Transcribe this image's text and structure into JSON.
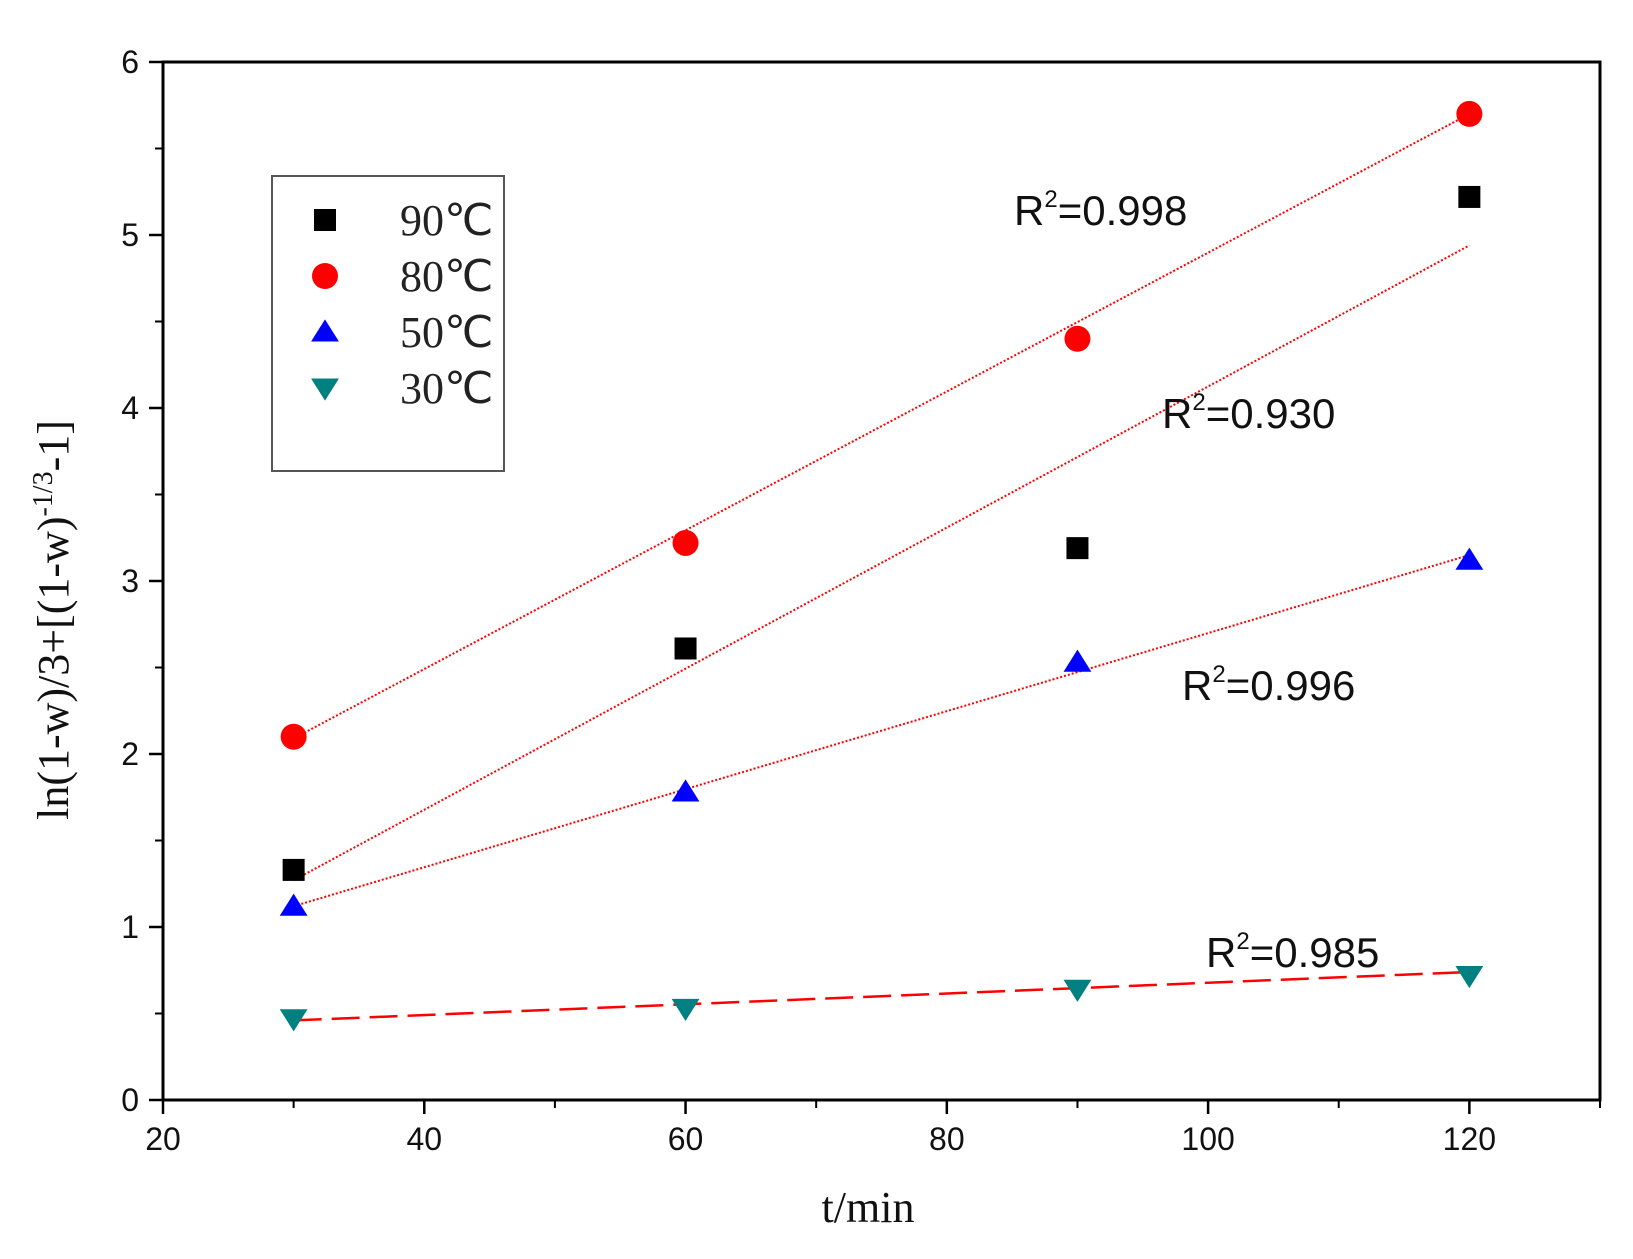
{
  "chart_data": {
    "type": "scatter",
    "title": "",
    "xlabel": "t/min",
    "ylabel": "ln(1-w)/3+[(1-w)^-1/3-1]",
    "ylabel_parts": {
      "main": "ln(1-w)/3+[(1-w)",
      "exp": "-1/3",
      "tail": "-1]"
    },
    "xlim": [
      20,
      130
    ],
    "ylim": [
      0,
      6
    ],
    "xticks": [
      20,
      40,
      60,
      80,
      100,
      120
    ],
    "yticks": [
      0,
      1,
      2,
      3,
      4,
      5,
      6
    ],
    "grid": false,
    "legend_position": "top-left",
    "series": [
      {
        "name": "90℃",
        "color": "#000000",
        "marker": "square",
        "x": [
          30,
          60,
          90,
          120
        ],
        "y": [
          1.33,
          2.61,
          3.19,
          5.22
        ],
        "fit": {
          "x": [
            30,
            120
          ],
          "y": [
            1.27,
            4.94
          ],
          "style": "dotted"
        },
        "r2_label": {
          "prefix": "R",
          "sup": "2",
          "value": "=0.930"
        }
      },
      {
        "name": "80℃",
        "color": "#ff0000",
        "marker": "circle",
        "x": [
          30,
          60,
          90,
          120
        ],
        "y": [
          2.1,
          3.22,
          4.4,
          5.7
        ],
        "fit": {
          "x": [
            30,
            120
          ],
          "y": [
            2.09,
            5.7
          ],
          "style": "dotted"
        },
        "r2_label": {
          "prefix": "R",
          "sup": "2",
          "value": "=0.998"
        }
      },
      {
        "name": "50℃",
        "color": "#0000ff",
        "marker": "triangle-up",
        "x": [
          30,
          60,
          90,
          120
        ],
        "y": [
          1.12,
          1.78,
          2.53,
          3.12
        ],
        "fit": {
          "x": [
            30,
            120
          ],
          "y": [
            1.12,
            3.15
          ],
          "style": "dotted"
        },
        "r2_label": {
          "prefix": "R",
          "sup": "2",
          "value": "=0.996"
        }
      },
      {
        "name": "30℃",
        "color": "#008080",
        "marker": "triangle-down",
        "x": [
          30,
          60,
          90,
          120
        ],
        "y": [
          0.47,
          0.53,
          0.64,
          0.72
        ],
        "fit": {
          "x": [
            30,
            120
          ],
          "y": [
            0.46,
            0.74
          ],
          "style": "dashed"
        },
        "r2_label": {
          "prefix": "R",
          "sup": "2",
          "value": "=0.985"
        }
      }
    ],
    "fit_color": "#ff0000"
  }
}
